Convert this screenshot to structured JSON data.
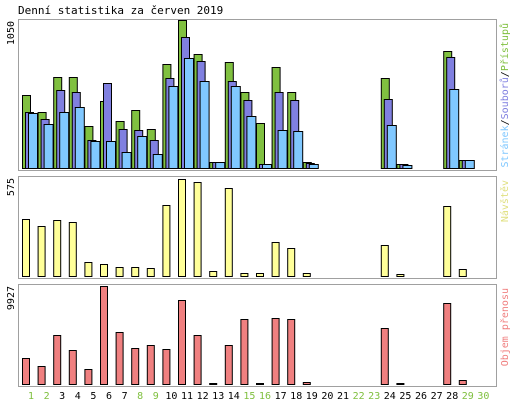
{
  "chart_data": {
    "type": "bar",
    "title": "Denní statistika za červen 2019",
    "days": [
      "1",
      "2",
      "3",
      "4",
      "5",
      "6",
      "7",
      "8",
      "9",
      "10",
      "11",
      "12",
      "13",
      "14",
      "15",
      "16",
      "17",
      "18",
      "19",
      "20",
      "21",
      "22",
      "23",
      "24",
      "25",
      "26",
      "27",
      "28",
      "29",
      "30"
    ],
    "weekend_days": [
      "1",
      "2",
      "8",
      "9",
      "15",
      "16",
      "22",
      "23",
      "29",
      "30"
    ],
    "colors": {
      "hits": "#80c040",
      "files": "#8080e0",
      "pages": "#80c8ff",
      "visits": "#ffff99",
      "kbytes": "#f08080",
      "frame": "#a0a0a0",
      "weekday_label": "#000000",
      "weekend_label": "#80c040"
    },
    "panels": [
      {
        "id": "traffic",
        "ymax_label": "1050",
        "ymax": 1050,
        "legend": [
          {
            "text": "Stránek",
            "color": "#80c8ff"
          },
          {
            "text": "/",
            "color": "#000000"
          },
          {
            "text": "Souborů",
            "color": "#8080e0"
          },
          {
            "text": "/",
            "color": "#000000"
          },
          {
            "text": "Přístupů",
            "color": "#80c040"
          }
        ],
        "series": [
          {
            "name": "Přístupů",
            "values": [
              515,
              400,
              645,
              645,
              300,
              475,
              330,
              410,
              280,
              740,
              1050,
              810,
              45,
              750,
              540,
              320,
              720,
              540,
              40,
              0,
              0,
              0,
              0,
              640,
              30,
              0,
              0,
              830,
              60,
              0
            ]
          },
          {
            "name": "Souborů",
            "values": [
              400,
              350,
              550,
              540,
              200,
              600,
              280,
              270,
              200,
              635,
              930,
              760,
              45,
              620,
              480,
              25,
              540,
              480,
              35,
              0,
              0,
              0,
              0,
              490,
              25,
              0,
              0,
              790,
              60,
              0
            ]
          },
          {
            "name": "Stránek",
            "values": [
              390,
              310,
              400,
              430,
              190,
              190,
              110,
              230,
              100,
              585,
              780,
              620,
              40,
              580,
              370,
              25,
              270,
              260,
              25,
              0,
              0,
              0,
              0,
              305,
              20,
              0,
              0,
              560,
              55,
              0
            ]
          }
        ]
      },
      {
        "id": "visits",
        "ymax_label": "575",
        "ymax": 575,
        "legend": [
          {
            "text": "Návštěv",
            "color": "#e0e080"
          }
        ],
        "series": [
          {
            "name": "Návštěv",
            "values": [
              335,
              295,
              330,
              320,
              85,
              70,
              55,
              55,
              45,
              420,
              575,
              555,
              30,
              520,
              20,
              15,
              200,
              165,
              20,
              0,
              0,
              0,
              0,
              185,
              10,
              0,
              0,
              415,
              40,
              0
            ]
          }
        ]
      },
      {
        "id": "kbytes",
        "ymax_label": "9927",
        "ymax": 9927,
        "legend": [
          {
            "text": "Objem přenosu",
            "color": "#f08080"
          }
        ],
        "series": [
          {
            "name": "Objem přenosu",
            "values": [
              2600,
              1800,
              5000,
              3400,
              1500,
              9927,
              5300,
              3600,
              3900,
              3500,
              8500,
              5000,
              100,
              3900,
              6600,
              100,
              6700,
              6600,
              250,
              0,
              0,
              0,
              0,
              5700,
              150,
              0,
              0,
              8200,
              450,
              0
            ]
          }
        ]
      }
    ]
  }
}
